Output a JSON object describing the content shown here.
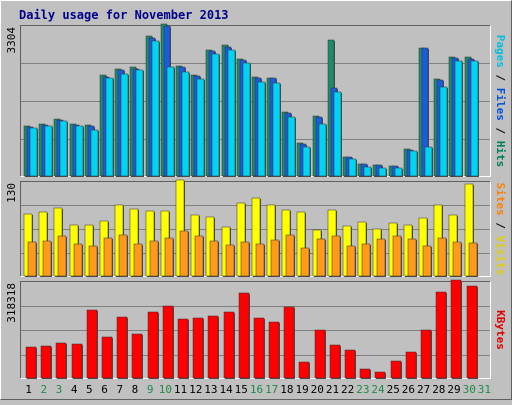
{
  "chart_data": [
    {
      "type": "bar",
      "title": "Daily usage for November 2013",
      "ylabel_parts": [
        {
          "text": "Pages",
          "color": "#00c0e0"
        },
        {
          "text": " / ",
          "color": "#000000"
        },
        {
          "text": "Files",
          "color": "#0050e0"
        },
        {
          "text": " / ",
          "color": "#000000"
        },
        {
          "text": "Hits",
          "color": "#00805a"
        }
      ],
      "ymax_label": "3304",
      "ylim": [
        0,
        3304
      ],
      "categories": [
        "1",
        "2",
        "3",
        "4",
        "5",
        "6",
        "7",
        "8",
        "9",
        "10",
        "11",
        "12",
        "13",
        "14",
        "15",
        "16",
        "17",
        "18",
        "19",
        "20",
        "21",
        "22",
        "23",
        "24",
        "25",
        "26",
        "27",
        "28",
        "29",
        "30",
        "31"
      ],
      "weekend_days": [
        "2",
        "3",
        "9",
        "10",
        "16",
        "17",
        "23",
        "24",
        "30",
        "31"
      ],
      "series": [
        {
          "name": "Hits",
          "color": "#1f8a6a",
          "values": [
            1080,
            1130,
            1230,
            1130,
            1100,
            2190,
            2330,
            2360,
            3040,
            3304,
            2400,
            2200,
            2740,
            2840,
            2550,
            2160,
            2140,
            1400,
            710,
            1310,
            2950,
            420,
            260,
            240,
            220,
            590,
            2780,
            2100,
            2580,
            2580,
            null
          ]
        },
        {
          "name": "Files",
          "color": "#1a5ce0",
          "values": [
            1060,
            1110,
            1210,
            1110,
            1080,
            2160,
            2310,
            2330,
            3000,
            3260,
            2370,
            2180,
            2720,
            2810,
            2520,
            2140,
            2120,
            1370,
            690,
            1290,
            1910,
            410,
            250,
            230,
            210,
            570,
            2780,
            2080,
            2560,
            2550,
            null
          ]
        },
        {
          "name": "Pages",
          "color": "#00d4f0",
          "values": [
            1040,
            1090,
            1190,
            1090,
            1000,
            2120,
            2220,
            2300,
            2930,
            2380,
            2270,
            2100,
            2650,
            2730,
            2450,
            2040,
            2020,
            1290,
            620,
            1120,
            1820,
            370,
            190,
            180,
            170,
            550,
            620,
            1940,
            2510,
            2490,
            null
          ]
        }
      ]
    },
    {
      "type": "bar",
      "ylabel_parts": [
        {
          "text": "Sites",
          "color": "#ff8000"
        },
        {
          "text": " / ",
          "color": "#000000"
        },
        {
          "text": "Visits",
          "color": "#e0d000"
        }
      ],
      "ymax_label": "130",
      "ylim": [
        0,
        130
      ],
      "series": [
        {
          "name": "Visits",
          "color": "#ffff00",
          "values": [
            84,
            87,
            92,
            69,
            69,
            74,
            96,
            91,
            88,
            88,
            130,
            82,
            80,
            66,
            99,
            106,
            96,
            90,
            86,
            62,
            89,
            68,
            73,
            63,
            72,
            69,
            78,
            96,
            82,
            125,
            null
          ]
        },
        {
          "name": "Sites",
          "color": "#ff9a1a",
          "values": [
            46,
            48,
            54,
            44,
            41,
            52,
            56,
            44,
            48,
            51,
            61,
            54,
            48,
            42,
            46,
            44,
            49,
            56,
            38,
            50,
            54,
            40,
            44,
            50,
            54,
            50,
            40,
            52,
            46,
            45,
            null
          ]
        }
      ]
    },
    {
      "type": "bar",
      "ylabel_parts": [
        {
          "text": "KBytes",
          "color": "#e00000"
        }
      ],
      "ymax_label": "318318",
      "ylim": [
        0,
        318318
      ],
      "series": [
        {
          "name": "KBytes",
          "color": "#ff0000",
          "values": [
            100500,
            105000,
            113000,
            109000,
            222000,
            132000,
            198000,
            143000,
            216000,
            233000,
            193000,
            194000,
            202000,
            213000,
            276000,
            194000,
            183000,
            232000,
            51000,
            157000,
            106000,
            92000,
            30000,
            21000,
            54000,
            86000,
            156000,
            279000,
            318318,
            298000,
            null
          ]
        }
      ]
    }
  ]
}
